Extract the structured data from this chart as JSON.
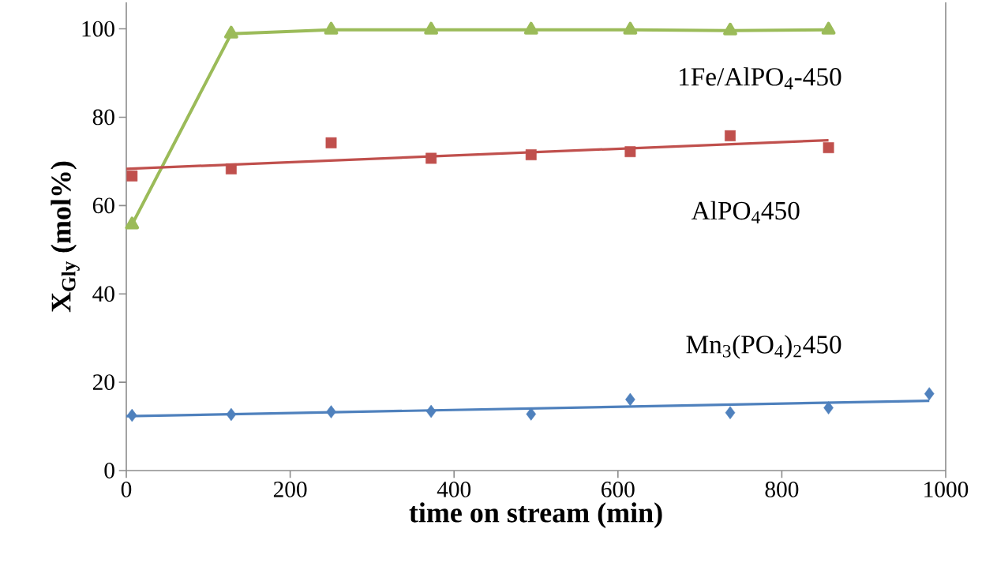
{
  "chart_data": {
    "type": "line",
    "xlabel": "time on stream (min)",
    "ylabel": "X$_{Gly}$ (mol%)",
    "xlim": [
      0,
      1000
    ],
    "ylim": [
      0,
      106
    ],
    "xticks": [
      0,
      200,
      400,
      600,
      800,
      1000
    ],
    "yticks": [
      0,
      20,
      40,
      60,
      80,
      100
    ],
    "grid": false,
    "legend": false,
    "line_style": "solid",
    "series": [
      {
        "name": "1Fe/AlPO$_{4}$-450",
        "color": "#9bbb59",
        "marker": "triangle",
        "x": [
          7,
          128,
          250,
          372,
          494,
          615,
          737,
          857
        ],
        "values": [
          55.7,
          98.9,
          99.8,
          99.8,
          99.8,
          99.8,
          99.6,
          99.8
        ]
      },
      {
        "type": "scatter",
        "name": "AlPO$_{4}$450",
        "color": "#c0504d",
        "marker": "square",
        "x": [
          7,
          128,
          250,
          372,
          494,
          615,
          737,
          857
        ],
        "values": [
          66.7,
          68.3,
          74.2,
          70.7,
          71.5,
          72.2,
          75.8,
          73.1
        ]
      },
      {
        "color": "#c0504d",
        "marker": "none",
        "x": [
          0,
          857
        ],
        "values": [
          68.3,
          74.8
        ]
      },
      {
        "type": "scatter",
        "name": "Mn$_{3}$(PO$_{4}$)$_{2}$450",
        "color": "#4f81bd",
        "marker": "diamond",
        "x": [
          7,
          128,
          250,
          372,
          494,
          615,
          737,
          857,
          980
        ],
        "values": [
          12.5,
          12.7,
          13.3,
          13.4,
          12.8,
          16.1,
          13.1,
          14.2,
          17.4
        ]
      },
      {
        "color": "#4f81bd",
        "marker": "none",
        "x": [
          0,
          980
        ],
        "values": [
          12.3,
          15.8
        ]
      }
    ]
  }
}
